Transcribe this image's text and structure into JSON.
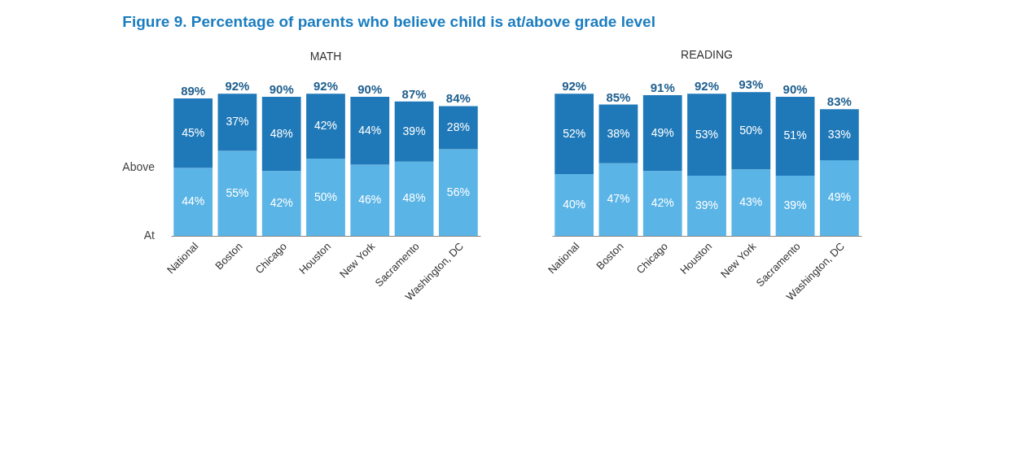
{
  "chart_data": [
    {
      "type": "bar",
      "stacked": true,
      "title": "Figure 9. Percentage of parents who believe child is at/above grade level",
      "subtitle": "MATH",
      "categories": [
        "National",
        "Boston",
        "Chicago",
        "Houston",
        "New York",
        "Sacramento",
        "Washington, DC"
      ],
      "series": [
        {
          "name": "At",
          "color": "#5ab4e6",
          "values": [
            44,
            55,
            42,
            50,
            46,
            48,
            56
          ],
          "value_labels": [
            "44%",
            "55%",
            "42%",
            "50%",
            "46%",
            "48%",
            "56%"
          ]
        },
        {
          "name": "Above",
          "color": "#1f79b8",
          "values": [
            45,
            37,
            48,
            42,
            44,
            39,
            28
          ],
          "value_labels": [
            "45%",
            "37%",
            "48%",
            "42%",
            "44%",
            "39%",
            "28%"
          ]
        }
      ],
      "totals": [
        "89%",
        "92%",
        "90%",
        "92%",
        "90%",
        "87%",
        "84%"
      ]
    },
    {
      "type": "bar",
      "stacked": true,
      "title": "READING",
      "categories": [
        "National",
        "Boston",
        "Chicago",
        "Houston",
        "New York",
        "Sacramento",
        "Washington, DC"
      ],
      "series": [
        {
          "color": "#5ab4e6",
          "values": [
            40,
            47,
            42,
            39,
            43,
            39,
            49
          ],
          "value_labels": [
            "40%",
            "47%",
            "42%",
            "39%",
            "43%",
            "39%",
            "49%"
          ]
        },
        {
          "color": "#1f79b8",
          "values": [
            52,
            38,
            49,
            53,
            50,
            51,
            33
          ],
          "value_labels": [
            "52%",
            "38%",
            "49%",
            "53%",
            "50%",
            "51%",
            "33%"
          ]
        }
      ],
      "totals": [
        "92%",
        "85%",
        "91%",
        "92%",
        "93%",
        "90%",
        "83%"
      ]
    }
  ]
}
